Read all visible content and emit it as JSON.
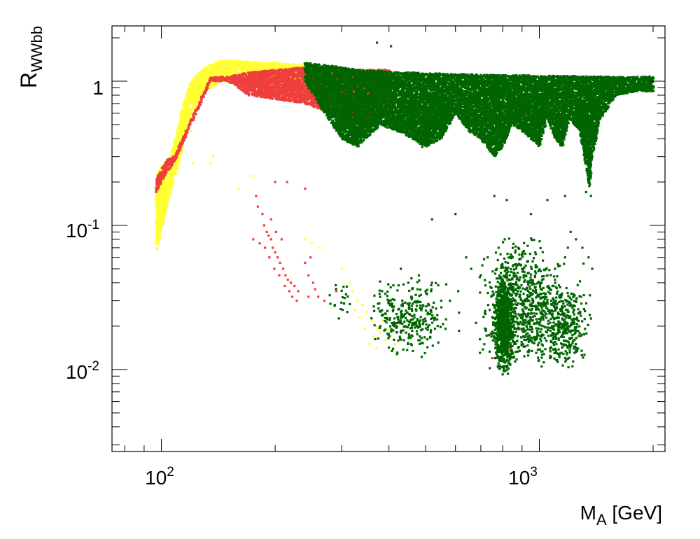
{
  "chart_data": {
    "type": "scatter",
    "title": "",
    "xscale": "log",
    "yscale": "log",
    "xlim": [
      74,
      2150
    ],
    "ylim": [
      0.0027,
      2.42
    ],
    "grid": false,
    "legend": "none",
    "xlabel": {
      "main": "M",
      "sub": "A",
      "rest": " [GeV]"
    },
    "ylabel": {
      "main": "R",
      "sub": "WWbb"
    },
    "x_major_ticks": [
      {
        "value": 100,
        "base": "10",
        "exp": "2"
      },
      {
        "value": 1000,
        "base": "10",
        "exp": "3"
      }
    ],
    "y_major_ticks": [
      {
        "value": 0.01,
        "base": "10",
        "exp": "-2"
      },
      {
        "value": 0.1,
        "base": "10",
        "exp": "-1"
      },
      {
        "value": 1,
        "base": "1",
        "exp": ""
      }
    ],
    "series": [
      {
        "color": "#ffff33",
        "band": [
          [
            97,
            0.065,
            0.22
          ],
          [
            100,
            0.09,
            0.26
          ],
          [
            103,
            0.13,
            0.28
          ],
          [
            106,
            0.17,
            0.3
          ],
          [
            110,
            0.24,
            0.45
          ],
          [
            115,
            0.4,
            0.75
          ],
          [
            120,
            0.6,
            1.0
          ],
          [
            130,
            0.85,
            1.25
          ],
          [
            145,
            1.0,
            1.4
          ],
          [
            165,
            0.95,
            1.38
          ],
          [
            190,
            0.95,
            1.35
          ],
          [
            220,
            0.95,
            1.32
          ],
          [
            240,
            0.9,
            1.3
          ]
        ],
        "scatter": [
          [
            115,
            0.5
          ],
          [
            118,
            0.48
          ],
          [
            120,
            0.45
          ],
          [
            135,
            0.27
          ],
          [
            137,
            0.3
          ],
          [
            121,
            0.27
          ],
          [
            175,
            0.22
          ],
          [
            160,
            0.18
          ],
          [
            240,
            0.08
          ],
          [
            250,
            0.075
          ],
          [
            262,
            0.07
          ],
          [
            300,
            0.05
          ],
          [
            315,
            0.04
          ],
          [
            320,
            0.035
          ],
          [
            330,
            0.03
          ],
          [
            340,
            0.028
          ],
          [
            350,
            0.025
          ],
          [
            360,
            0.022
          ],
          [
            370,
            0.02
          ],
          [
            380,
            0.018
          ],
          [
            390,
            0.016
          ],
          [
            400,
            0.019
          ],
          [
            410,
            0.021
          ],
          [
            355,
            0.015
          ],
          [
            365,
            0.017
          ],
          [
            375,
            0.019
          ],
          [
            385,
            0.022
          ],
          [
            395,
            0.024
          ],
          [
            345,
            0.019
          ],
          [
            335,
            0.023
          ],
          [
            325,
            0.026
          ],
          [
            405,
            0.017
          ],
          [
            415,
            0.015
          ],
          [
            370,
            0.014
          ]
        ]
      },
      {
        "color": "#ee3e3e",
        "band": [
          [
            97,
            0.17,
            0.21
          ],
          [
            100,
            0.2,
            0.25
          ],
          [
            104,
            0.24,
            0.29
          ],
          [
            108,
            0.27,
            0.3
          ],
          [
            135,
            1.0,
            1.06
          ],
          [
            150,
            1.0,
            1.08
          ],
          [
            170,
            0.8,
            1.15
          ],
          [
            200,
            0.75,
            1.2
          ],
          [
            240,
            0.7,
            1.25
          ],
          [
            280,
            0.6,
            1.2
          ],
          [
            320,
            0.5,
            1.2
          ],
          [
            360,
            0.5,
            1.2
          ],
          [
            400,
            0.6,
            1.2
          ]
        ],
        "scatter": [
          [
            178,
            0.16
          ],
          [
            180,
            0.135
          ],
          [
            185,
            0.12
          ],
          [
            187,
            0.1
          ],
          [
            190,
            0.09
          ],
          [
            192,
            0.085
          ],
          [
            195,
            0.08
          ],
          [
            197,
            0.07
          ],
          [
            200,
            0.065
          ],
          [
            203,
            0.06
          ],
          [
            206,
            0.055
          ],
          [
            210,
            0.05
          ],
          [
            213,
            0.045
          ],
          [
            216,
            0.042
          ],
          [
            220,
            0.04
          ],
          [
            225,
            0.038
          ],
          [
            230,
            0.035
          ],
          [
            240,
            0.055
          ],
          [
            245,
            0.045
          ],
          [
            248,
            0.06
          ],
          [
            252,
            0.04
          ],
          [
            270,
            0.03
          ],
          [
            260,
            0.032
          ],
          [
            255,
            0.036
          ],
          [
            175,
            0.08
          ],
          [
            182,
            0.075
          ],
          [
            188,
            0.07
          ],
          [
            193,
            0.06
          ],
          [
            199,
            0.05
          ],
          [
            205,
            0.045
          ],
          [
            212,
            0.038
          ],
          [
            218,
            0.035
          ],
          [
            222,
            0.032
          ],
          [
            228,
            0.03
          ],
          [
            240,
            0.18
          ],
          [
            215,
            0.2
          ],
          [
            200,
            0.2
          ],
          [
            195,
            0.11
          ],
          [
            201,
            0.09
          ],
          [
            208,
            0.08
          ],
          [
            290,
            0.035
          ],
          [
            245,
            0.032
          ],
          [
            420,
            0.02
          ],
          [
            750,
            0.012
          ],
          [
            840,
            0.014
          ]
        ]
      },
      {
        "color": "#006400",
        "band": [
          [
            240,
            1.0,
            1.35
          ],
          [
            270,
            0.6,
            1.3
          ],
          [
            300,
            0.4,
            1.25
          ],
          [
            330,
            0.35,
            1.2
          ],
          [
            380,
            0.5,
            1.18
          ],
          [
            420,
            0.45,
            1.15
          ],
          [
            460,
            0.4,
            1.15
          ],
          [
            500,
            0.35,
            1.14
          ],
          [
            550,
            0.4,
            1.13
          ],
          [
            600,
            0.6,
            1.12
          ],
          [
            650,
            0.45,
            1.12
          ],
          [
            700,
            0.4,
            1.11
          ],
          [
            760,
            0.3,
            1.11
          ],
          [
            800,
            0.35,
            1.1
          ],
          [
            850,
            0.5,
            1.1
          ],
          [
            900,
            0.45,
            1.1
          ],
          [
            950,
            0.4,
            1.1
          ],
          [
            1000,
            0.35,
            1.09
          ],
          [
            1050,
            0.55,
            1.09
          ],
          [
            1100,
            0.4,
            1.09
          ],
          [
            1150,
            0.35,
            1.09
          ],
          [
            1200,
            0.55,
            1.09
          ],
          [
            1280,
            0.45,
            1.08
          ],
          [
            1330,
            0.25,
            1.08
          ],
          [
            1360,
            0.18,
            1.08
          ],
          [
            1380,
            0.3,
            1.08
          ],
          [
            1450,
            0.55,
            1.08
          ],
          [
            1600,
            0.8,
            1.07
          ],
          [
            1800,
            0.85,
            1.07
          ],
          [
            2000,
            0.85,
            1.08
          ]
        ],
        "scatter": [
          [
            372,
            1.85
          ],
          [
            405,
            1.75
          ],
          [
            490,
            0.35
          ],
          [
            1170,
            0.16
          ],
          [
            760,
            0.16
          ],
          [
            820,
            0.15
          ],
          [
            1050,
            0.15
          ],
          [
            950,
            0.12
          ],
          [
            600,
            0.12
          ],
          [
            520,
            0.11
          ],
          [
            1330,
            0.17
          ],
          [
            1370,
            0.16
          ],
          [
            1170,
            0.06
          ],
          [
            1190,
            0.07
          ],
          [
            1210,
            0.09
          ],
          [
            1250,
            0.08
          ],
          [
            1300,
            0.07
          ],
          [
            1350,
            0.06
          ],
          [
            1380,
            0.05
          ],
          [
            640,
            0.06
          ],
          [
            660,
            0.05
          ],
          [
            700,
            0.045
          ],
          [
            730,
            0.06
          ],
          [
            780,
            0.07
          ],
          [
            810,
            0.08
          ],
          [
            850,
            0.06
          ],
          [
            900,
            0.05
          ],
          [
            950,
            0.04
          ],
          [
            1000,
            0.04
          ],
          [
            1050,
            0.045
          ],
          [
            1100,
            0.05
          ],
          [
            430,
            0.05
          ],
          [
            450,
            0.04
          ],
          [
            480,
            0.045
          ],
          [
            500,
            0.035
          ],
          [
            520,
            0.04
          ],
          [
            550,
            0.03
          ],
          [
            580,
            0.03
          ],
          [
            610,
            0.035
          ]
        ],
        "clusters": [
          {
            "x": [
              330,
              620
            ],
            "y": [
              0.012,
              0.045
            ],
            "n": 300
          },
          {
            "x": [
              640,
              1400
            ],
            "y": [
              0.01,
              0.06
            ],
            "n": 700
          },
          {
            "x": [
              740,
              880
            ],
            "y": [
              0.009,
              0.05
            ],
            "n": 800
          },
          {
            "x": [
              1000,
              1400
            ],
            "y": [
              0.01,
              0.04
            ],
            "n": 250
          },
          {
            "x": [
              680,
              1150
            ],
            "y": [
              0.03,
              0.09
            ],
            "n": 120
          },
          {
            "x": [
              260,
              340
            ],
            "y": [
              0.02,
              0.05
            ],
            "n": 20
          }
        ]
      }
    ]
  }
}
